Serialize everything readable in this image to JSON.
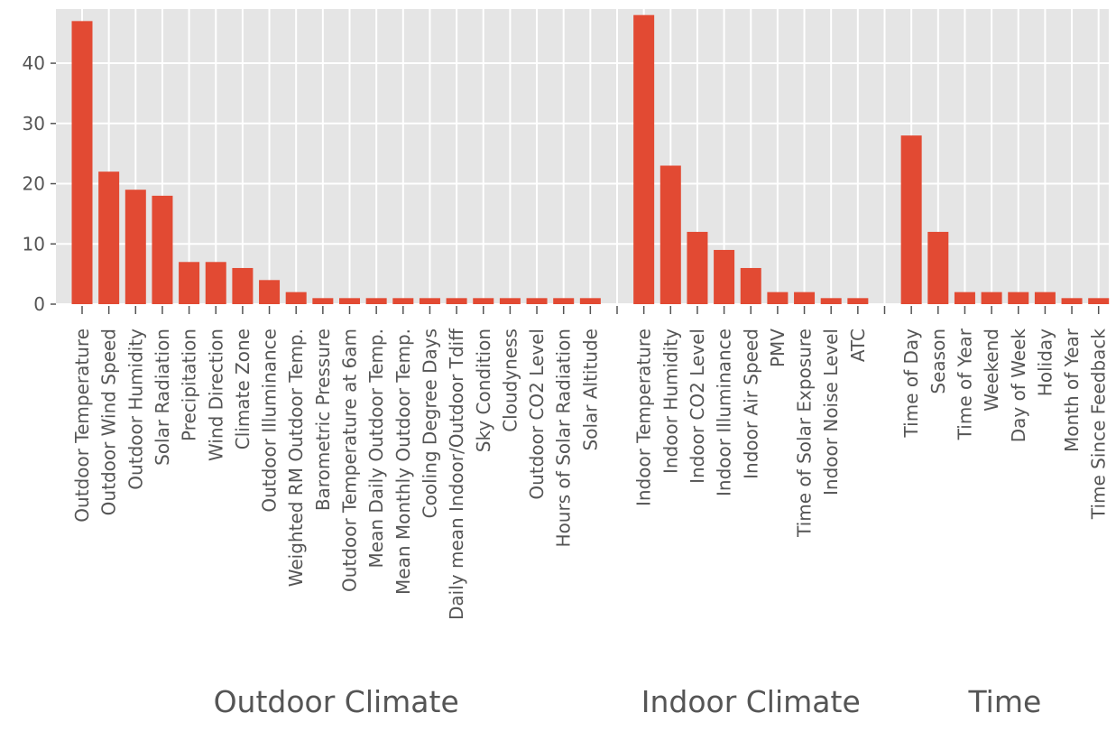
{
  "chart_data": {
    "type": "bar",
    "title": "",
    "xlabel": "",
    "ylabel": "",
    "ylim": [
      0,
      49
    ],
    "yticks": [
      0,
      10,
      20,
      30,
      40
    ],
    "grid": true,
    "colors": {
      "bar": "#E24A33",
      "background": "#E5E5E5",
      "grid": "#FFFFFF",
      "text": "#555555"
    },
    "groups": [
      {
        "name": "Outdoor Climate",
        "categories": [
          "Outdoor Temperature",
          "Outdoor Wind Speed",
          "Outdoor Humidity",
          "Solar Radiation",
          "Precipitation",
          "Wind Direction",
          "Climate Zone",
          "Outdoor Illuminance",
          "Weighted RM Outdoor Temp.",
          "Barometric Pressure",
          "Outdoor Temperature at 6am",
          "Mean Daily Outdoor Temp.",
          "Mean Monthly Outdoor Temp.",
          "Cooling Degree Days",
          "Daily mean Indoor/Outdoor Tdiff",
          "Sky Condition",
          "Cloudyness",
          "Outdoor CO2 Level",
          "Hours of Solar Radiation",
          "Solar Altitude"
        ],
        "values": [
          47,
          22,
          19,
          18,
          7,
          7,
          6,
          4,
          2,
          1,
          1,
          1,
          1,
          1,
          1,
          1,
          1,
          1,
          1,
          1
        ]
      },
      {
        "name": "Indoor Climate",
        "categories": [
          "Indoor Temperature",
          "Indoor Humidity",
          "Indoor CO2 Level",
          "Indoor Illuminance",
          "Indoor Air Speed",
          "PMV",
          "Time of Solar Exposure",
          "Indoor Noise Level",
          "ATC"
        ],
        "values": [
          48,
          23,
          12,
          9,
          6,
          2,
          2,
          1,
          1
        ]
      },
      {
        "name": "Time",
        "categories": [
          "Time of Day",
          "Season",
          "Time of Year",
          "Weekend",
          "Day of Week",
          "Holiday",
          "Month of Year",
          "Time Since Feedback"
        ],
        "values": [
          28,
          12,
          2,
          2,
          2,
          2,
          1,
          1
        ]
      }
    ]
  }
}
